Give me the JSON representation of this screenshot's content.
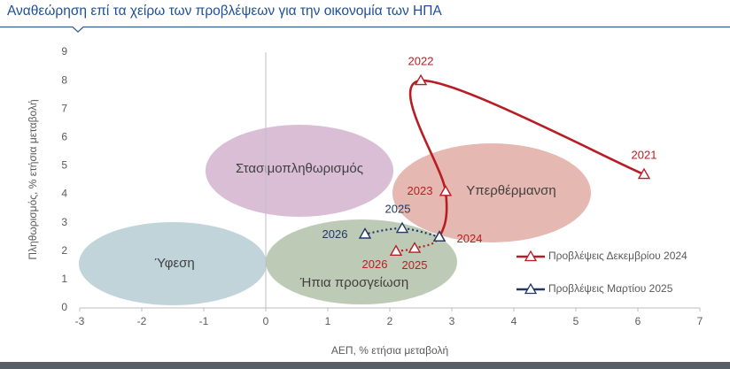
{
  "chart_data": {
    "type": "line",
    "title": "Αναθεώρηση επί τα χείρω των προβλέψεων για την οικονομία των ΗΠΑ",
    "x_label": "ΑΕΠ, % ετήσια μεταβολή",
    "y_label": "Πληθωρισμός, % ετήσια μεταβολή",
    "xlim": [
      -3,
      7
    ],
    "xticks": [
      -3,
      -2,
      -1,
      0,
      1,
      2,
      3,
      4,
      5,
      6,
      7
    ],
    "ylim": [
      0,
      9
    ],
    "yticks": [
      0,
      1,
      2,
      3,
      4,
      5,
      6,
      7,
      8,
      9
    ],
    "grid": false,
    "legend": "right",
    "series": [
      {
        "name": "Προβλέψεις Δεκεμβρίου 2024",
        "color": "#b81d24",
        "point_labels": [
          "2021",
          "2022",
          "2023",
          "2024",
          "2025",
          "2026"
        ],
        "x": [
          6.1,
          2.5,
          2.9,
          2.8,
          2.4,
          2.1
        ],
        "values": [
          4.7,
          8.0,
          4.1,
          2.5,
          2.1,
          2.0
        ],
        "segment_styles": [
          "solid",
          "solid",
          "solid",
          "dotted",
          "dotted"
        ]
      },
      {
        "name": "Προβλέψεις Μαρτίου 2025",
        "color": "#1f3864",
        "point_labels": [
          null,
          "2025",
          "2026"
        ],
        "x": [
          2.8,
          2.2,
          1.6
        ],
        "values": [
          2.5,
          2.8,
          2.6
        ],
        "segment_styles": [
          "dotted",
          "dotted"
        ]
      }
    ],
    "regions": [
      {
        "label": "Στασιμοπληθωρισμός",
        "color": "#d3b3cf"
      },
      {
        "label": "Υπερθέρμανση",
        "color": "#e2aba5"
      },
      {
        "label": "Ύφεση",
        "color": "#b6ccd4"
      },
      {
        "label": "Ήπια προσγείωση",
        "color": "#b2c2a9"
      }
    ]
  }
}
